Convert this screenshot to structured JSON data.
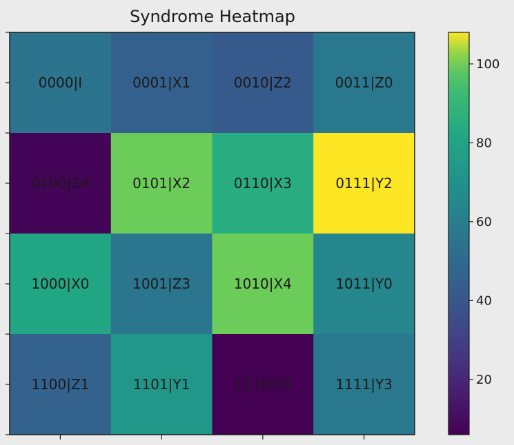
{
  "chart_data": {
    "type": "heatmap",
    "title": "Syndrome Heatmap",
    "rows": 4,
    "cols": 4,
    "labels": [
      [
        "0000|I",
        "0001|X1",
        "0010|Z2",
        "0011|Z0"
      ],
      [
        "0100|Z4",
        "0101|X2",
        "0110|X3",
        "0111|Y2"
      ],
      [
        "1000|X0",
        "1001|Z3",
        "1010|X4",
        "1011|Y0"
      ],
      [
        "1100|Z1",
        "1101|Y1",
        "1110|Y4",
        "1111|Y3"
      ]
    ],
    "values": [
      [
        55,
        45,
        42,
        57
      ],
      [
        7,
        100,
        85,
        108
      ],
      [
        82,
        56,
        100,
        64
      ],
      [
        46,
        73,
        6,
        57
      ]
    ],
    "colorbar": {
      "min": 6,
      "max": 108,
      "ticks": [
        20,
        40,
        60,
        80,
        100
      ],
      "colormap": "viridis"
    },
    "xlabel": "",
    "ylabel": ""
  }
}
